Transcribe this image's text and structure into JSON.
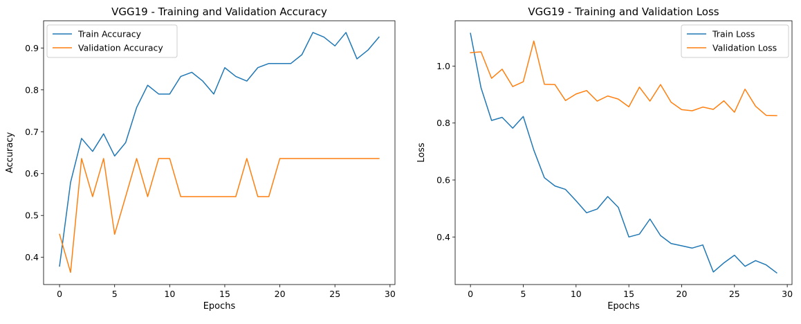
{
  "chart_data": [
    {
      "type": "line",
      "title": "VGG19 - Training and Validation Accuracy",
      "xlabel": "Epochs",
      "ylabel": "Accuracy",
      "xlim": [
        -1.45,
        30.45
      ],
      "ylim": [
        0.335,
        0.965
      ],
      "xticks": [
        0,
        5,
        10,
        15,
        20,
        25,
        30
      ],
      "yticks": [
        0.4,
        0.5,
        0.6,
        0.7,
        0.8,
        0.9
      ],
      "grid": false,
      "legend": "top-left",
      "x": [
        0,
        1,
        2,
        3,
        4,
        5,
        6,
        7,
        8,
        9,
        10,
        11,
        12,
        13,
        14,
        15,
        16,
        17,
        18,
        19,
        20,
        21,
        22,
        23,
        24,
        25,
        26,
        27,
        28,
        29
      ],
      "series": [
        {
          "name": "Train Accuracy",
          "color": "#1f77b4",
          "values": [
            0.379,
            0.579,
            0.684,
            0.653,
            0.695,
            0.642,
            0.674,
            0.758,
            0.811,
            0.79,
            0.79,
            0.832,
            0.842,
            0.821,
            0.79,
            0.853,
            0.832,
            0.821,
            0.853,
            0.863,
            0.863,
            0.863,
            0.884,
            0.937,
            0.926,
            0.905,
            0.937,
            0.874,
            0.895,
            0.926
          ]
        },
        {
          "name": "Validation Accuracy",
          "color": "#ff7f0e",
          "values": [
            0.455,
            0.364,
            0.636,
            0.545,
            0.636,
            0.455,
            0.545,
            0.636,
            0.545,
            0.636,
            0.636,
            0.545,
            0.545,
            0.545,
            0.545,
            0.545,
            0.545,
            0.636,
            0.545,
            0.545,
            0.636,
            0.636,
            0.636,
            0.636,
            0.636,
            0.636,
            0.636,
            0.636,
            0.636,
            0.636
          ]
        }
      ]
    },
    {
      "type": "line",
      "title": "VGG19 - Training and Validation Loss",
      "xlabel": "Epochs",
      "ylabel": "Loss",
      "xlim": [
        -1.45,
        30.45
      ],
      "ylim": [
        0.233,
        1.159
      ],
      "xticks": [
        0,
        5,
        10,
        15,
        20,
        25,
        30
      ],
      "yticks": [
        0.4,
        0.6,
        0.8,
        1.0
      ],
      "grid": false,
      "legend": "top-right",
      "x": [
        0,
        1,
        2,
        3,
        4,
        5,
        6,
        7,
        8,
        9,
        10,
        11,
        12,
        13,
        14,
        15,
        16,
        17,
        18,
        19,
        20,
        21,
        22,
        23,
        24,
        25,
        26,
        27,
        28,
        29
      ],
      "series": [
        {
          "name": "Train Loss",
          "color": "#1f77b4",
          "values": [
            1.115,
            0.924,
            0.809,
            0.82,
            0.782,
            0.823,
            0.705,
            0.608,
            0.579,
            0.567,
            0.527,
            0.485,
            0.498,
            0.542,
            0.504,
            0.4,
            0.41,
            0.463,
            0.405,
            0.377,
            0.369,
            0.361,
            0.372,
            0.277,
            0.309,
            0.336,
            0.297,
            0.317,
            0.302,
            0.274
          ]
        },
        {
          "name": "Validation Loss",
          "color": "#ff7f0e",
          "values": [
            1.047,
            1.05,
            0.957,
            0.989,
            0.928,
            0.945,
            1.088,
            0.936,
            0.935,
            0.879,
            0.902,
            0.914,
            0.877,
            0.895,
            0.884,
            0.857,
            0.926,
            0.877,
            0.935,
            0.873,
            0.847,
            0.843,
            0.856,
            0.848,
            0.878,
            0.838,
            0.919,
            0.859,
            0.827,
            0.826
          ]
        }
      ]
    }
  ]
}
